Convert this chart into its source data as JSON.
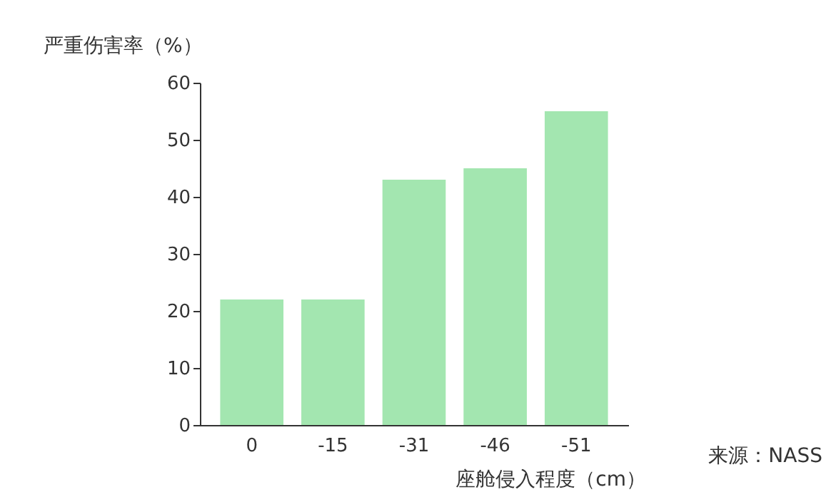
{
  "chart_data": {
    "type": "bar",
    "ylabel": "严重伤害率（%）",
    "xlabel": "座舱侵入程度（cm）",
    "annotations": [
      "来源：NASS"
    ],
    "categories": [
      "0",
      "-15",
      "-31",
      "-46",
      "-51"
    ],
    "values": [
      22,
      22,
      43,
      45,
      55
    ],
    "color": "#a3e6b0",
    "ylim": [
      0,
      60
    ],
    "yticks": [
      0,
      10,
      20,
      30,
      40,
      50,
      60
    ],
    "grid": false
  }
}
